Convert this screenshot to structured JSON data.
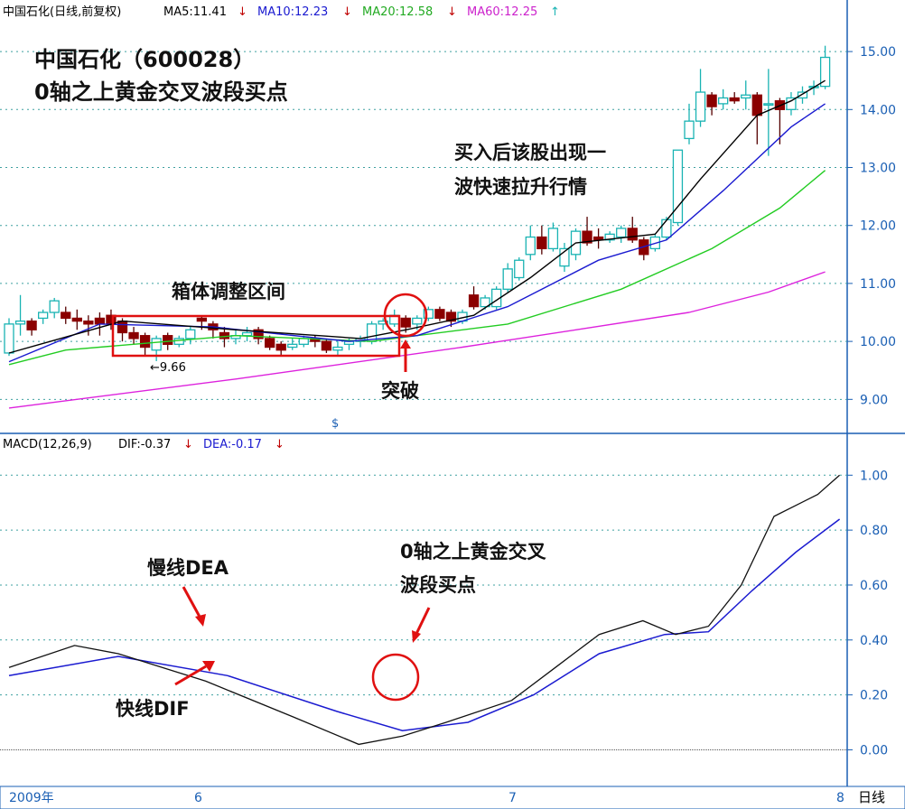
{
  "colors": {
    "ma5": "#000000",
    "ma10": "#1a1ad0",
    "ma20": "#22cc22",
    "ma60": "#dd22dd",
    "up": "#19b3b3",
    "down": "#8b0000",
    "grid": "#3fa0a0",
    "annotation_red": "#e01010",
    "axis_text": "#1a5fb4"
  },
  "header": {
    "stock": "中国石化(日线,前复权)",
    "ma5": "MA5:11.41",
    "ma10": "MA10:12.23",
    "ma20": "MA20:12.58",
    "ma60": "MA60:12.25",
    "down_arrow": "↓",
    "up_arrow": "↑"
  },
  "macd_header": {
    "label": "MACD(12,26,9)",
    "dif": "DIF:-0.37",
    "dea": "DEA:-0.17",
    "arrow": "↓"
  },
  "annotations": {
    "title_line1": "中国石化（600028）",
    "title_line2": "0轴之上黄金交叉波段买点",
    "box_label": "箱体调整区间",
    "after_buy_line1": "买入后该股出现一",
    "after_buy_line2": "波快速拉升行情",
    "breakout": "突破",
    "low_marker": "←9.66",
    "dollar_marker": "$",
    "dea_label": "慢线DEA",
    "dif_label": "快线DIF",
    "macd_cross_line1": "0轴之上黄金交叉",
    "macd_cross_line2": "波段买点"
  },
  "bottom_bar": {
    "year": "2009年",
    "months": [
      "6",
      "7",
      "8"
    ],
    "period": "日线"
  },
  "chart_data": [
    {
      "type": "candlestick",
      "name": "price",
      "ylim": [
        8.6,
        15.5
      ],
      "yticks": [
        "9.00",
        "10.00",
        "11.00",
        "12.00",
        "13.00",
        "14.00",
        "15.00"
      ],
      "candles": [
        [
          9.8,
          10.3,
          10.4,
          9.75
        ],
        [
          10.3,
          10.35,
          10.8,
          10.1
        ],
        [
          10.35,
          10.2,
          10.4,
          10.1
        ],
        [
          10.4,
          10.5,
          10.55,
          10.3
        ],
        [
          10.5,
          10.7,
          10.75,
          10.4
        ],
        [
          10.5,
          10.4,
          10.6,
          10.3
        ],
        [
          10.4,
          10.35,
          10.55,
          10.2
        ],
        [
          10.35,
          10.3,
          10.45,
          10.1
        ],
        [
          10.4,
          10.3,
          10.5,
          10.1
        ],
        [
          10.45,
          10.3,
          10.55,
          10.2
        ],
        [
          10.35,
          10.15,
          10.4,
          10.0
        ],
        [
          10.15,
          10.05,
          10.25,
          9.95
        ],
        [
          10.1,
          9.9,
          10.15,
          9.75
        ],
        [
          9.85,
          10.05,
          10.1,
          9.66
        ],
        [
          10.1,
          9.95,
          10.15,
          9.85
        ],
        [
          9.95,
          10.05,
          10.1,
          9.9
        ],
        [
          10.05,
          10.2,
          10.25,
          9.95
        ],
        [
          10.4,
          10.35,
          10.45,
          10.2
        ],
        [
          10.3,
          10.2,
          10.35,
          10.05
        ],
        [
          10.15,
          10.05,
          10.25,
          9.9
        ],
        [
          10.05,
          10.1,
          10.2,
          9.95
        ],
        [
          10.1,
          10.15,
          10.25,
          10.0
        ],
        [
          10.2,
          10.05,
          10.25,
          9.95
        ],
        [
          10.05,
          9.9,
          10.1,
          9.85
        ],
        [
          9.95,
          9.85,
          10.0,
          9.75
        ],
        [
          9.9,
          9.95,
          10.05,
          9.85
        ],
        [
          9.95,
          10.05,
          10.1,
          9.9
        ],
        [
          10.05,
          10.0,
          10.1,
          9.9
        ],
        [
          10.0,
          9.85,
          10.05,
          9.8
        ],
        [
          9.85,
          9.9,
          10.0,
          9.75
        ],
        [
          9.95,
          10.0,
          10.05,
          9.85
        ],
        [
          10.0,
          10.05,
          10.1,
          9.9
        ],
        [
          10.0,
          10.3,
          10.35,
          9.95
        ],
        [
          10.3,
          10.35,
          10.4,
          10.2
        ],
        [
          10.3,
          10.45,
          10.55,
          10.25
        ],
        [
          10.4,
          10.25,
          10.45,
          10.15
        ],
        [
          10.3,
          10.4,
          10.45,
          10.2
        ],
        [
          10.4,
          10.55,
          10.6,
          10.35
        ],
        [
          10.55,
          10.4,
          10.6,
          10.35
        ],
        [
          10.5,
          10.35,
          10.55,
          10.25
        ],
        [
          10.35,
          10.5,
          10.55,
          10.3
        ],
        [
          10.8,
          10.6,
          10.95,
          10.55
        ],
        [
          10.6,
          10.75,
          10.8,
          10.55
        ],
        [
          10.6,
          10.9,
          10.95,
          10.55
        ],
        [
          10.9,
          11.25,
          11.35,
          10.85
        ],
        [
          11.1,
          11.4,
          11.45,
          11.05
        ],
        [
          11.5,
          11.8,
          12.0,
          11.4
        ],
        [
          11.8,
          11.6,
          12.0,
          11.5
        ],
        [
          11.6,
          11.95,
          12.05,
          11.55
        ],
        [
          11.3,
          11.6,
          11.7,
          11.2
        ],
        [
          11.5,
          11.9,
          11.95,
          11.4
        ],
        [
          11.9,
          11.7,
          12.15,
          11.65
        ],
        [
          11.8,
          11.75,
          11.95,
          11.6
        ],
        [
          11.75,
          11.85,
          11.9,
          11.7
        ],
        [
          11.8,
          11.95,
          12.0,
          11.7
        ],
        [
          11.95,
          11.75,
          12.15,
          11.7
        ],
        [
          11.75,
          11.5,
          11.8,
          11.4
        ],
        [
          11.6,
          11.8,
          11.85,
          11.55
        ],
        [
          11.8,
          12.1,
          12.15,
          11.75
        ],
        [
          12.05,
          13.3,
          13.3,
          12.0
        ],
        [
          13.5,
          13.8,
          14.1,
          13.4
        ],
        [
          13.8,
          14.3,
          14.7,
          13.7
        ],
        [
          14.25,
          14.05,
          14.3,
          13.9
        ],
        [
          14.1,
          14.2,
          14.35,
          14.0
        ],
        [
          14.2,
          14.15,
          14.3,
          14.1
        ],
        [
          14.2,
          14.25,
          14.5,
          14.0
        ],
        [
          14.25,
          13.9,
          14.3,
          13.4
        ],
        [
          14.1,
          14.1,
          14.7,
          13.2
        ],
        [
          14.15,
          14.0,
          14.2,
          13.4
        ],
        [
          14.0,
          14.2,
          14.3,
          13.9
        ],
        [
          14.2,
          14.3,
          14.4,
          14.1
        ],
        [
          14.4,
          14.4,
          14.5,
          14.25
        ],
        [
          14.4,
          14.9,
          15.1,
          14.35
        ]
      ],
      "ma5": [
        [
          0,
          9.8
        ],
        [
          10,
          10.35
        ],
        [
          20,
          10.2
        ],
        [
          31,
          10.05
        ],
        [
          35,
          10.2
        ],
        [
          41,
          10.45
        ],
        [
          46,
          11.1
        ],
        [
          50,
          11.7
        ],
        [
          57,
          11.85
        ],
        [
          61,
          12.8
        ],
        [
          66,
          13.9
        ],
        [
          69,
          14.15
        ],
        [
          72,
          14.5
        ]
      ],
      "ma10": [
        [
          0,
          9.65
        ],
        [
          8,
          10.3
        ],
        [
          18,
          10.25
        ],
        [
          30,
          10.0
        ],
        [
          36,
          10.1
        ],
        [
          44,
          10.6
        ],
        [
          52,
          11.4
        ],
        [
          58,
          11.75
        ],
        [
          63,
          12.6
        ],
        [
          69,
          13.7
        ],
        [
          72,
          14.1
        ]
      ],
      "ma20": [
        [
          0,
          9.6
        ],
        [
          5,
          9.85
        ],
        [
          20,
          10.1
        ],
        [
          32,
          10.0
        ],
        [
          44,
          10.3
        ],
        [
          54,
          10.9
        ],
        [
          62,
          11.6
        ],
        [
          68,
          12.3
        ],
        [
          72,
          12.95
        ]
      ],
      "ma60": [
        [
          0,
          8.85
        ],
        [
          20,
          9.35
        ],
        [
          40,
          9.9
        ],
        [
          50,
          10.2
        ],
        [
          60,
          10.5
        ],
        [
          67,
          10.85
        ],
        [
          72,
          11.2
        ]
      ]
    },
    {
      "type": "line",
      "name": "macd",
      "ylim": [
        -0.13,
        1.07
      ],
      "yticks": [
        "0.00",
        "0.20",
        "0.40",
        "0.60",
        "0.80",
        "1.00"
      ],
      "series": [
        {
          "name": "DIF",
          "points": [
            [
              0,
              0.3
            ],
            [
              6,
              0.38
            ],
            [
              10,
              0.35
            ],
            [
              18,
              0.25
            ],
            [
              26,
              0.12
            ],
            [
              32,
              0.02
            ],
            [
              36,
              0.05
            ],
            [
              40,
              0.1
            ],
            [
              46,
              0.18
            ],
            [
              50,
              0.3
            ],
            [
              54,
              0.42
            ],
            [
              58,
              0.47
            ],
            [
              61,
              0.42
            ],
            [
              64,
              0.45
            ],
            [
              67,
              0.6
            ],
            [
              70,
              0.85
            ],
            [
              74,
              0.93
            ],
            [
              76,
              1.0
            ]
          ]
        },
        {
          "name": "DEA",
          "points": [
            [
              0,
              0.27
            ],
            [
              10,
              0.34
            ],
            [
              20,
              0.27
            ],
            [
              30,
              0.14
            ],
            [
              36,
              0.07
            ],
            [
              42,
              0.1
            ],
            [
              48,
              0.2
            ],
            [
              54,
              0.35
            ],
            [
              60,
              0.42
            ],
            [
              64,
              0.43
            ],
            [
              68,
              0.58
            ],
            [
              72,
              0.72
            ],
            [
              76,
              0.84
            ]
          ]
        }
      ]
    }
  ]
}
